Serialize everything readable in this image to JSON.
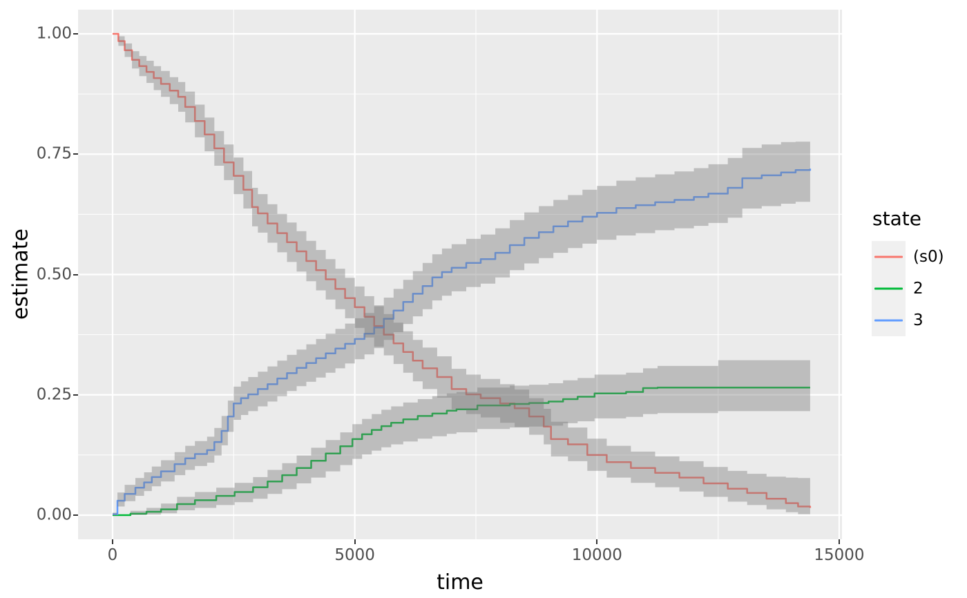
{
  "axes": {
    "x_title": "time",
    "y_title": "estimate",
    "x_tick_labels": [
      "0",
      "5000",
      "10000",
      "15000"
    ],
    "y_tick_labels": [
      "0.00",
      "0.25",
      "0.50",
      "0.75",
      "1.00"
    ]
  },
  "legend": {
    "title": "state",
    "items": [
      {
        "label": "(s0)",
        "color": "#F8766D"
      },
      {
        "label": "2",
        "color": "#00BA38"
      },
      {
        "label": "3",
        "color": "#619CFF"
      }
    ]
  },
  "colors": {
    "panel_background": "#EBEBEB",
    "grid": "#FFFFFF",
    "tick_label": "#4D4D4D",
    "axis_title": "#000000",
    "legend_key_background": "#F0F0F0",
    "ribbon_fill": "rgba(120,120,120,0.4)"
  },
  "chart_data": {
    "type": "line",
    "subtype": "step-function-with-confidence-ribbons",
    "title": "",
    "xlabel": "time",
    "ylabel": "estimate",
    "xlim": [
      0,
      15000
    ],
    "ylim": [
      0.0,
      1.0
    ],
    "x_ticks": [
      0,
      5000,
      10000,
      15000
    ],
    "x_minor_ticks": [
      2500,
      7500,
      12500
    ],
    "y_ticks": [
      0.0,
      0.25,
      0.5,
      0.75,
      1.0
    ],
    "y_minor_ticks": [
      0.125,
      0.375,
      0.625,
      0.875
    ],
    "grid": true,
    "legend_position": "right",
    "legend_title": "state",
    "point_format": "[time, estimate, conf_low, conf_high]",
    "series": [
      {
        "name": "(s0)",
        "color": "#F8766D",
        "points": [
          [
            0,
            1.0,
            1.0,
            1.0
          ],
          [
            120,
            0.985,
            0.975,
            0.995
          ],
          [
            250,
            0.966,
            0.952,
            0.98
          ],
          [
            400,
            0.946,
            0.928,
            0.964
          ],
          [
            550,
            0.933,
            0.912,
            0.954
          ],
          [
            700,
            0.921,
            0.898,
            0.944
          ],
          [
            850,
            0.908,
            0.883,
            0.933
          ],
          [
            1000,
            0.896,
            0.869,
            0.923
          ],
          [
            1180,
            0.882,
            0.854,
            0.91
          ],
          [
            1355,
            0.869,
            0.838,
            0.9
          ],
          [
            1500,
            0.848,
            0.816,
            0.88
          ],
          [
            1700,
            0.819,
            0.785,
            0.853
          ],
          [
            1900,
            0.791,
            0.756,
            0.826
          ],
          [
            2100,
            0.762,
            0.726,
            0.798
          ],
          [
            2300,
            0.733,
            0.696,
            0.77
          ],
          [
            2500,
            0.705,
            0.667,
            0.743
          ],
          [
            2700,
            0.676,
            0.637,
            0.715
          ],
          [
            2880,
            0.64,
            0.6,
            0.68
          ],
          [
            3000,
            0.627,
            0.587,
            0.667
          ],
          [
            3200,
            0.606,
            0.566,
            0.646
          ],
          [
            3400,
            0.586,
            0.546,
            0.626
          ],
          [
            3600,
            0.567,
            0.526,
            0.608
          ],
          [
            3800,
            0.548,
            0.506,
            0.59
          ],
          [
            4000,
            0.528,
            0.486,
            0.57
          ],
          [
            4200,
            0.509,
            0.467,
            0.551
          ],
          [
            4400,
            0.49,
            0.448,
            0.532
          ],
          [
            4600,
            0.47,
            0.428,
            0.512
          ],
          [
            4800,
            0.451,
            0.409,
            0.493
          ],
          [
            5000,
            0.432,
            0.389,
            0.475
          ],
          [
            5200,
            0.412,
            0.369,
            0.455
          ],
          [
            5400,
            0.393,
            0.35,
            0.436
          ],
          [
            5600,
            0.375,
            0.332,
            0.418
          ],
          [
            5800,
            0.357,
            0.314,
            0.4
          ],
          [
            6000,
            0.339,
            0.296,
            0.382
          ],
          [
            6200,
            0.321,
            0.278,
            0.364
          ],
          [
            6400,
            0.305,
            0.262,
            0.348
          ],
          [
            6700,
            0.287,
            0.244,
            0.33
          ],
          [
            7000,
            0.262,
            0.22,
            0.304
          ],
          [
            7300,
            0.251,
            0.21,
            0.292
          ],
          [
            7600,
            0.243,
            0.203,
            0.283
          ],
          [
            8000,
            0.232,
            0.192,
            0.272
          ],
          [
            8300,
            0.222,
            0.183,
            0.261
          ],
          [
            8600,
            0.205,
            0.167,
            0.243
          ],
          [
            8900,
            0.184,
            0.147,
            0.221
          ],
          [
            9050,
            0.158,
            0.122,
            0.194
          ],
          [
            9400,
            0.147,
            0.112,
            0.182
          ],
          [
            9800,
            0.125,
            0.092,
            0.159
          ],
          [
            10200,
            0.11,
            0.078,
            0.144
          ],
          [
            10700,
            0.098,
            0.067,
            0.132
          ],
          [
            11200,
            0.088,
            0.058,
            0.122
          ],
          [
            11700,
            0.078,
            0.049,
            0.112
          ],
          [
            12200,
            0.066,
            0.038,
            0.1
          ],
          [
            12700,
            0.055,
            0.028,
            0.092
          ],
          [
            13100,
            0.046,
            0.021,
            0.086
          ],
          [
            13500,
            0.034,
            0.012,
            0.08
          ],
          [
            13900,
            0.025,
            0.006,
            0.078
          ],
          [
            14150,
            0.018,
            0.002,
            0.077
          ],
          [
            14400,
            0.015,
            0.0,
            0.082
          ]
        ]
      },
      {
        "name": "2",
        "color": "#00BA38",
        "points": [
          [
            0,
            0.0,
            0.0,
            0.0
          ],
          [
            370,
            0.003,
            0.0,
            0.009
          ],
          [
            700,
            0.007,
            0.001,
            0.015
          ],
          [
            1000,
            0.012,
            0.004,
            0.024
          ],
          [
            1330,
            0.023,
            0.01,
            0.038
          ],
          [
            1700,
            0.031,
            0.015,
            0.048
          ],
          [
            2140,
            0.04,
            0.021,
            0.057
          ],
          [
            2520,
            0.048,
            0.027,
            0.067
          ],
          [
            2900,
            0.058,
            0.034,
            0.079
          ],
          [
            3200,
            0.07,
            0.044,
            0.094
          ],
          [
            3500,
            0.083,
            0.054,
            0.108
          ],
          [
            3800,
            0.098,
            0.066,
            0.124
          ],
          [
            4100,
            0.113,
            0.078,
            0.14
          ],
          [
            4400,
            0.128,
            0.091,
            0.156
          ],
          [
            4700,
            0.143,
            0.104,
            0.172
          ],
          [
            4950,
            0.158,
            0.117,
            0.189
          ],
          [
            5150,
            0.168,
            0.126,
            0.2
          ],
          [
            5350,
            0.177,
            0.134,
            0.21
          ],
          [
            5550,
            0.185,
            0.141,
            0.219
          ],
          [
            5750,
            0.192,
            0.147,
            0.226
          ],
          [
            6000,
            0.199,
            0.153,
            0.234
          ],
          [
            6300,
            0.206,
            0.159,
            0.241
          ],
          [
            6600,
            0.211,
            0.164,
            0.247
          ],
          [
            6900,
            0.217,
            0.169,
            0.253
          ],
          [
            7100,
            0.22,
            0.172,
            0.256
          ],
          [
            7530,
            0.228,
            0.179,
            0.265
          ],
          [
            8200,
            0.231,
            0.182,
            0.269
          ],
          [
            8600,
            0.233,
            0.184,
            0.271
          ],
          [
            9000,
            0.236,
            0.186,
            0.274
          ],
          [
            9300,
            0.241,
            0.191,
            0.28
          ],
          [
            9600,
            0.246,
            0.195,
            0.285
          ],
          [
            9950,
            0.253,
            0.201,
            0.292
          ],
          [
            10600,
            0.256,
            0.204,
            0.296
          ],
          [
            10950,
            0.264,
            0.21,
            0.305
          ],
          [
            11250,
            0.265,
            0.212,
            0.31
          ],
          [
            12500,
            0.265,
            0.216,
            0.322
          ],
          [
            14400,
            0.265,
            0.217,
            0.325
          ]
        ]
      },
      {
        "name": "3",
        "color": "#619CFF",
        "points": [
          [
            0,
            0.002,
            0.0,
            0.005
          ],
          [
            100,
            0.03,
            0.018,
            0.047
          ],
          [
            250,
            0.044,
            0.029,
            0.063
          ],
          [
            470,
            0.057,
            0.04,
            0.077
          ],
          [
            650,
            0.068,
            0.05,
            0.089
          ],
          [
            810,
            0.079,
            0.06,
            0.101
          ],
          [
            1000,
            0.091,
            0.07,
            0.114
          ],
          [
            1280,
            0.106,
            0.083,
            0.131
          ],
          [
            1500,
            0.118,
            0.094,
            0.144
          ],
          [
            1700,
            0.127,
            0.102,
            0.154
          ],
          [
            1950,
            0.135,
            0.109,
            0.163
          ],
          [
            2100,
            0.152,
            0.124,
            0.181
          ],
          [
            2250,
            0.175,
            0.145,
            0.206
          ],
          [
            2380,
            0.205,
            0.173,
            0.238
          ],
          [
            2500,
            0.232,
            0.198,
            0.267
          ],
          [
            2650,
            0.243,
            0.208,
            0.278
          ],
          [
            2800,
            0.251,
            0.216,
            0.287
          ],
          [
            3000,
            0.262,
            0.226,
            0.298
          ],
          [
            3200,
            0.272,
            0.236,
            0.309
          ],
          [
            3400,
            0.284,
            0.247,
            0.321
          ],
          [
            3600,
            0.295,
            0.258,
            0.333
          ],
          [
            3800,
            0.306,
            0.268,
            0.344
          ],
          [
            4000,
            0.316,
            0.277,
            0.355
          ],
          [
            4200,
            0.326,
            0.286,
            0.366
          ],
          [
            4400,
            0.336,
            0.296,
            0.377
          ],
          [
            4600,
            0.346,
            0.305,
            0.387
          ],
          [
            4800,
            0.356,
            0.315,
            0.398
          ],
          [
            5000,
            0.366,
            0.324,
            0.409
          ],
          [
            5200,
            0.377,
            0.334,
            0.42
          ],
          [
            5400,
            0.39,
            0.347,
            0.434
          ],
          [
            5600,
            0.408,
            0.364,
            0.452
          ],
          [
            5800,
            0.425,
            0.38,
            0.47
          ],
          [
            6000,
            0.443,
            0.397,
            0.489
          ],
          [
            6200,
            0.46,
            0.413,
            0.507
          ],
          [
            6400,
            0.476,
            0.428,
            0.524
          ],
          [
            6600,
            0.494,
            0.446,
            0.542
          ],
          [
            6800,
            0.505,
            0.456,
            0.554
          ],
          [
            7000,
            0.514,
            0.465,
            0.563
          ],
          [
            7300,
            0.524,
            0.474,
            0.574
          ],
          [
            7600,
            0.532,
            0.481,
            0.583
          ],
          [
            7900,
            0.545,
            0.494,
            0.596
          ],
          [
            8200,
            0.561,
            0.509,
            0.613
          ],
          [
            8500,
            0.576,
            0.523,
            0.629
          ],
          [
            8800,
            0.588,
            0.534,
            0.642
          ],
          [
            9100,
            0.6,
            0.545,
            0.655
          ],
          [
            9400,
            0.61,
            0.555,
            0.665
          ],
          [
            9700,
            0.62,
            0.564,
            0.676
          ],
          [
            10000,
            0.628,
            0.572,
            0.684
          ],
          [
            10400,
            0.638,
            0.581,
            0.695
          ],
          [
            10800,
            0.644,
            0.586,
            0.702
          ],
          [
            11200,
            0.65,
            0.592,
            0.708
          ],
          [
            11600,
            0.655,
            0.596,
            0.714
          ],
          [
            12000,
            0.661,
            0.601,
            0.721
          ],
          [
            12300,
            0.668,
            0.607,
            0.729
          ],
          [
            12700,
            0.68,
            0.618,
            0.742
          ],
          [
            13000,
            0.7,
            0.637,
            0.763
          ],
          [
            13400,
            0.706,
            0.642,
            0.77
          ],
          [
            13800,
            0.712,
            0.647,
            0.775
          ],
          [
            14100,
            0.717,
            0.651,
            0.776
          ],
          [
            14400,
            0.72,
            0.663,
            0.777
          ]
        ]
      }
    ]
  }
}
